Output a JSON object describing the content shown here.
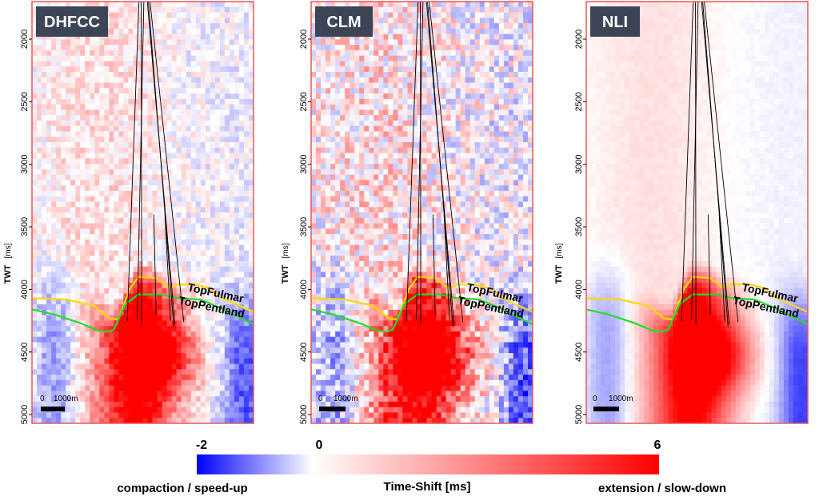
{
  "chart_data": {
    "type": "heatmap",
    "y_axis": {
      "label": "TWT",
      "unit": "[ms]",
      "range": [
        1700,
        5070
      ],
      "ticks": [
        2000,
        2500,
        3000,
        3500,
        4000,
        4500,
        5000
      ]
    },
    "panels": [
      {
        "title": "DHFCC",
        "noise": 0.55,
        "scale_label": "0",
        "scale_value": "1000m"
      },
      {
        "title": "CLM",
        "noise": 1.0,
        "scale_label": "0",
        "scale_value": "1000m"
      },
      {
        "title": "NLI",
        "noise": 0.08,
        "scale_label": "0",
        "scale_value": "1000m"
      }
    ],
    "horizons": [
      {
        "name": "TopFulmar",
        "color": "#ffd700",
        "points": [
          [
            0.0,
            4070
          ],
          [
            0.15,
            4080
          ],
          [
            0.28,
            4130
          ],
          [
            0.35,
            4230
          ],
          [
            0.39,
            4240
          ],
          [
            0.44,
            4000
          ],
          [
            0.48,
            3900
          ],
          [
            0.56,
            3910
          ],
          [
            0.62,
            3990
          ],
          [
            0.66,
            3960
          ],
          [
            0.74,
            3960
          ],
          [
            0.8,
            3990
          ],
          [
            0.86,
            4070
          ],
          [
            1.0,
            4180
          ]
        ]
      },
      {
        "name": "TopPentland",
        "color": "#22dd22",
        "points": [
          [
            0.0,
            4160
          ],
          [
            0.1,
            4200
          ],
          [
            0.22,
            4270
          ],
          [
            0.3,
            4330
          ],
          [
            0.34,
            4340
          ],
          [
            0.37,
            4320
          ],
          [
            0.42,
            4120
          ],
          [
            0.48,
            4040
          ],
          [
            0.58,
            4040
          ],
          [
            0.66,
            4070
          ],
          [
            0.76,
            4080
          ],
          [
            0.84,
            4140
          ],
          [
            1.0,
            4280
          ]
        ]
      }
    ],
    "colorbar": {
      "min": -2,
      "max": 6,
      "mid": 0,
      "min_label": "-2",
      "mid_label": "0",
      "max_label": "6",
      "colors": {
        "negative": "#0000ff",
        "zero": "#ffffff",
        "positive": "#ff0000"
      },
      "title": "Time-Shift [ms]",
      "left_caption": "compaction / speed-up",
      "right_caption": "extension / slow-down"
    }
  }
}
